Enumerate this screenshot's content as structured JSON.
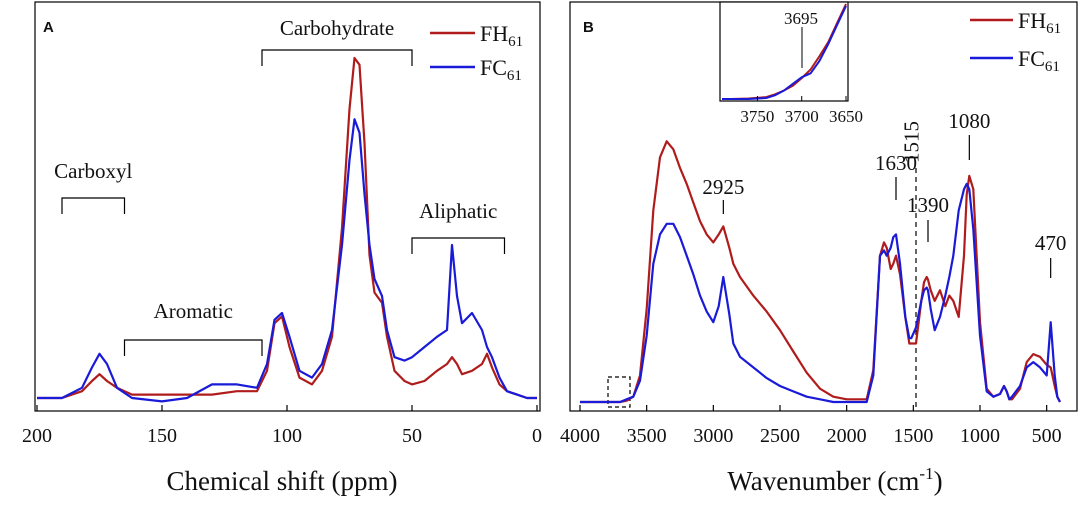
{
  "chart_data": [
    {
      "type": "line",
      "panel": "A",
      "xlabel": "Chemical shift (ppm)",
      "ylabel": "",
      "xlim": [
        200,
        0
      ],
      "x_reversed": true,
      "xticks": [
        200,
        150,
        100,
        50,
        0
      ],
      "ylim": [
        0,
        1
      ],
      "legend": {
        "placement": "top-right"
      },
      "series": [
        {
          "name": "FH",
          "subscript": "61",
          "color": "#b01c1c",
          "x": [
            200,
            190,
            182,
            178,
            175,
            172,
            168,
            162,
            150,
            140,
            130,
            120,
            112,
            108,
            105,
            102,
            99,
            95,
            90,
            86,
            82,
            78,
            75,
            73,
            71,
            69,
            67,
            65,
            62,
            60,
            57,
            53,
            50,
            45,
            40,
            36,
            34,
            32,
            30,
            26,
            22,
            20,
            18,
            15,
            12,
            8,
            4,
            0
          ],
          "y": [
            0.0,
            0.0,
            0.02,
            0.05,
            0.07,
            0.05,
            0.03,
            0.01,
            0.01,
            0.01,
            0.01,
            0.02,
            0.02,
            0.08,
            0.22,
            0.24,
            0.15,
            0.06,
            0.04,
            0.08,
            0.18,
            0.5,
            0.85,
            1.0,
            0.98,
            0.75,
            0.42,
            0.31,
            0.28,
            0.18,
            0.08,
            0.05,
            0.04,
            0.05,
            0.08,
            0.1,
            0.12,
            0.1,
            0.07,
            0.08,
            0.1,
            0.13,
            0.09,
            0.04,
            0.02,
            0.01,
            0.0,
            0.0
          ]
        },
        {
          "name": "FC",
          "subscript": "61",
          "color": "#1a1ad9",
          "x": [
            200,
            190,
            182,
            178,
            175,
            172,
            168,
            162,
            150,
            140,
            130,
            120,
            112,
            108,
            105,
            102,
            99,
            95,
            90,
            86,
            82,
            78,
            75,
            73,
            71,
            69,
            67,
            65,
            62,
            60,
            57,
            53,
            50,
            45,
            40,
            36,
            34,
            32,
            30,
            26,
            22,
            20,
            18,
            15,
            12,
            8,
            4,
            0
          ],
          "y": [
            0.0,
            0.0,
            0.03,
            0.09,
            0.13,
            0.1,
            0.03,
            0.0,
            -0.01,
            0.0,
            0.04,
            0.04,
            0.03,
            0.1,
            0.23,
            0.25,
            0.18,
            0.08,
            0.06,
            0.1,
            0.2,
            0.45,
            0.7,
            0.82,
            0.78,
            0.6,
            0.45,
            0.35,
            0.3,
            0.2,
            0.12,
            0.11,
            0.12,
            0.15,
            0.18,
            0.2,
            0.45,
            0.3,
            0.22,
            0.25,
            0.2,
            0.15,
            0.12,
            0.06,
            0.02,
            0.01,
            0.0,
            0.0
          ]
        }
      ],
      "annotations": [
        {
          "text": "Carboxyl",
          "range": [
            190,
            165
          ]
        },
        {
          "text": "Aromatic",
          "range": [
            165,
            110
          ]
        },
        {
          "text": "Carbohydrate",
          "range": [
            110,
            50
          ]
        },
        {
          "text": "Aliphatic",
          "range": [
            50,
            13
          ]
        }
      ]
    },
    {
      "type": "line",
      "panel": "B",
      "xlabel": "Wavenumber (cm",
      "xlabel_superscript": "-1",
      "xlabel_tail": ")",
      "ylabel": "",
      "xlim": [
        4000,
        400
      ],
      "x_reversed": true,
      "xticks": [
        4000,
        3500,
        3000,
        2500,
        2000,
        1500,
        1000,
        500
      ],
      "ylim": [
        0,
        1
      ],
      "legend": {
        "placement": "top-right"
      },
      "series": [
        {
          "name": "FH",
          "subscript": "61",
          "color": "#b01c1c",
          "x": [
            4000,
            3800,
            3700,
            3650,
            3600,
            3550,
            3500,
            3450,
            3400,
            3350,
            3300,
            3250,
            3200,
            3150,
            3100,
            3050,
            3000,
            2960,
            2925,
            2880,
            2850,
            2800,
            2700,
            2600,
            2500,
            2400,
            2300,
            2200,
            2100,
            2000,
            1900,
            1850,
            1800,
            1750,
            1720,
            1700,
            1670,
            1650,
            1630,
            1600,
            1560,
            1530,
            1515,
            1480,
            1440,
            1420,
            1400,
            1390,
            1370,
            1340,
            1300,
            1260,
            1230,
            1200,
            1160,
            1120,
            1100,
            1080,
            1050,
            1000,
            950,
            900,
            850,
            820,
            800,
            780,
            760,
            700,
            650,
            600,
            550,
            500,
            470,
            440,
            420,
            400
          ],
          "y": [
            0.0,
            0.0,
            0.0,
            0.005,
            0.02,
            0.1,
            0.35,
            0.72,
            0.92,
            0.98,
            0.95,
            0.88,
            0.82,
            0.75,
            0.68,
            0.63,
            0.6,
            0.63,
            0.66,
            0.58,
            0.52,
            0.47,
            0.4,
            0.34,
            0.27,
            0.19,
            0.11,
            0.05,
            0.02,
            0.01,
            0.01,
            0.01,
            0.12,
            0.55,
            0.6,
            0.58,
            0.5,
            0.52,
            0.55,
            0.48,
            0.32,
            0.22,
            0.22,
            0.22,
            0.38,
            0.45,
            0.47,
            0.46,
            0.42,
            0.38,
            0.42,
            0.36,
            0.4,
            0.38,
            0.32,
            0.55,
            0.78,
            0.85,
            0.8,
            0.3,
            0.05,
            0.02,
            0.03,
            0.06,
            0.04,
            0.01,
            0.01,
            0.05,
            0.15,
            0.18,
            0.17,
            0.14,
            0.13,
            0.06,
            0.02,
            0.0
          ]
        },
        {
          "name": "FC",
          "subscript": "61",
          "color": "#1a1ad9",
          "x": [
            4000,
            3800,
            3700,
            3650,
            3600,
            3550,
            3500,
            3450,
            3400,
            3350,
            3300,
            3250,
            3200,
            3150,
            3100,
            3050,
            3000,
            2960,
            2925,
            2880,
            2850,
            2800,
            2700,
            2600,
            2500,
            2400,
            2300,
            2200,
            2100,
            2000,
            1900,
            1850,
            1800,
            1750,
            1720,
            1700,
            1670,
            1650,
            1630,
            1600,
            1560,
            1530,
            1515,
            1480,
            1440,
            1420,
            1400,
            1390,
            1370,
            1340,
            1300,
            1260,
            1230,
            1200,
            1160,
            1120,
            1100,
            1080,
            1050,
            1000,
            950,
            900,
            850,
            820,
            800,
            780,
            760,
            700,
            650,
            600,
            550,
            500,
            470,
            440,
            420,
            400
          ],
          "y": [
            0.0,
            0.0,
            0.0,
            0.01,
            0.02,
            0.08,
            0.25,
            0.52,
            0.63,
            0.67,
            0.67,
            0.62,
            0.55,
            0.48,
            0.4,
            0.34,
            0.3,
            0.36,
            0.47,
            0.33,
            0.22,
            0.17,
            0.13,
            0.09,
            0.06,
            0.04,
            0.02,
            0.01,
            0.0,
            0.0,
            0.0,
            0.0,
            0.1,
            0.55,
            0.57,
            0.55,
            0.58,
            0.62,
            0.63,
            0.52,
            0.32,
            0.24,
            0.24,
            0.28,
            0.38,
            0.42,
            0.43,
            0.42,
            0.35,
            0.27,
            0.32,
            0.4,
            0.47,
            0.55,
            0.72,
            0.8,
            0.82,
            0.8,
            0.65,
            0.25,
            0.04,
            0.02,
            0.03,
            0.06,
            0.04,
            0.01,
            0.02,
            0.06,
            0.13,
            0.15,
            0.13,
            0.1,
            0.3,
            0.1,
            0.02,
            0.0
          ]
        }
      ],
      "annotations": [
        {
          "text": "2925",
          "x": 2925
        },
        {
          "text": "1630",
          "x": 1630
        },
        {
          "text": "1515",
          "x": 1515
        },
        {
          "text": "1390",
          "x": 1390
        },
        {
          "text": "1080",
          "x": 1080
        },
        {
          "text": "470",
          "x": 470
        }
      ],
      "inset": {
        "xlim": [
          3790,
          3650
        ],
        "xticks": [
          3750,
          3700,
          3650
        ],
        "annotation": "3695",
        "series": [
          {
            "name": "FH",
            "x": [
              3790,
              3780,
              3760,
              3740,
              3730,
              3720,
              3710,
              3700,
              3690,
              3680,
              3670,
              3660,
              3650
            ],
            "y": [
              0.0,
              0.0,
              0.005,
              0.02,
              0.05,
              0.09,
              0.14,
              0.22,
              0.31,
              0.45,
              0.6,
              0.8,
              1.0
            ]
          },
          {
            "name": "FC",
            "x": [
              3790,
              3780,
              3760,
              3740,
              3730,
              3720,
              3710,
              3700,
              3695,
              3690,
              3680,
              3670,
              3660,
              3650
            ],
            "y": [
              0.0,
              0.0,
              0.0,
              0.01,
              0.04,
              0.09,
              0.16,
              0.23,
              0.25,
              0.27,
              0.4,
              0.58,
              0.78,
              0.98
            ]
          }
        ]
      }
    }
  ]
}
